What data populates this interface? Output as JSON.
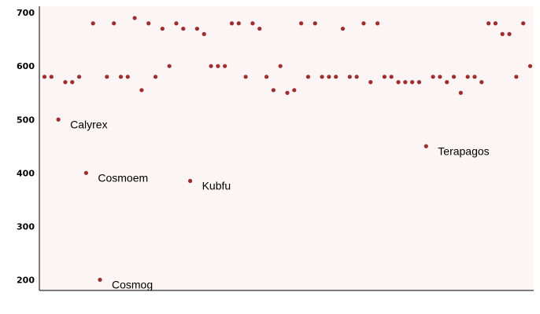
{
  "chart_data": {
    "type": "scatter",
    "title": "",
    "xlabel": "",
    "ylabel": "",
    "ylim": [
      180,
      712
    ],
    "y_ticks": [
      200,
      300,
      400,
      500,
      600,
      700
    ],
    "grid": false,
    "colors": {
      "plot_background": "#fbf5f5",
      "point": "#a52a2a",
      "axis": "#000000"
    },
    "series": [
      {
        "values": [
          580,
          580,
          500,
          570,
          570,
          580,
          400,
          680,
          200,
          580,
          680,
          580,
          580,
          690,
          555,
          680,
          580,
          670,
          600,
          680,
          670,
          385,
          670,
          660,
          600,
          600,
          600,
          680,
          680,
          580,
          680,
          670,
          580,
          555,
          600,
          550,
          555,
          680,
          580,
          680,
          580,
          580,
          580,
          670,
          580,
          580,
          680,
          570,
          680,
          580,
          580,
          570,
          570,
          570,
          570,
          450,
          580,
          580,
          570,
          580,
          550,
          580,
          580,
          570,
          680,
          680,
          660,
          660,
          580,
          680,
          600
        ]
      }
    ],
    "annotations": [
      {
        "point_index": 2,
        "text": "Calyrex"
      },
      {
        "point_index": 6,
        "text": "Cosmoem"
      },
      {
        "point_index": 8,
        "text": "Cosmog"
      },
      {
        "point_index": 21,
        "text": "Kubfu"
      },
      {
        "point_index": 55,
        "text": "Terapagos"
      }
    ]
  }
}
